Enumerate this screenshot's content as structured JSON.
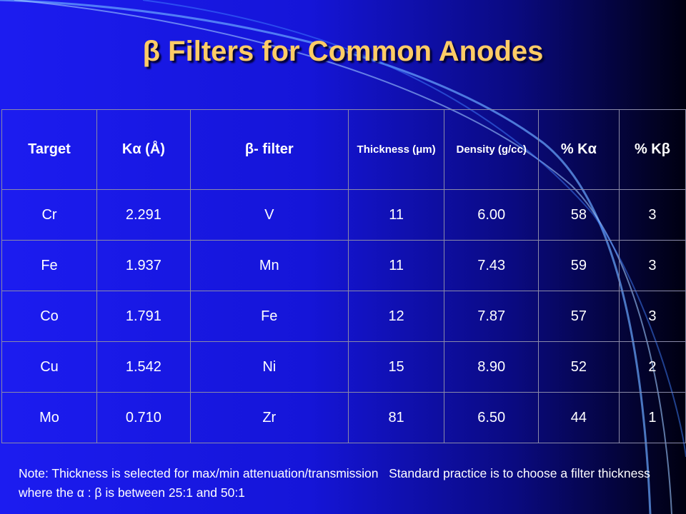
{
  "title": "β Filters for Common Anodes",
  "table": {
    "header": [
      "Target",
      "Kα (Å)",
      "β- filter",
      "Thickness (μm)",
      "Density (g/cc)",
      "% Kα",
      "% Kβ"
    ],
    "rows": [
      [
        "Cr",
        "2.291",
        "V",
        "11",
        "6.00",
        "58",
        "3"
      ],
      [
        "Fe",
        "1.937",
        "Mn",
        "11",
        "7.43",
        "59",
        "3"
      ],
      [
        "Co",
        "1.791",
        "Fe",
        "12",
        "7.87",
        "57",
        "3"
      ],
      [
        "Cu",
        "1.542",
        "Ni",
        "15",
        "8.90",
        "52",
        "2"
      ],
      [
        "Mo",
        "0.710",
        "Zr",
        "81",
        "6.50",
        "44",
        "1"
      ]
    ]
  },
  "note": "Note: Thickness is selected for max/min attenuation/transmission   Standard practice is to choose a filter thickness where the α : β is between 25:1 and 50:1"
}
